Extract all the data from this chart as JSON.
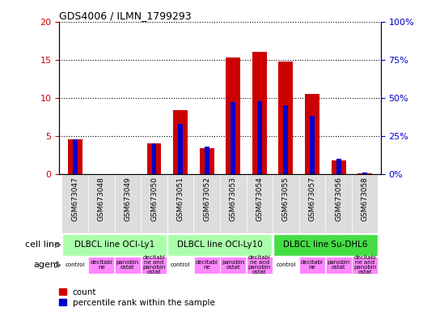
{
  "title": "GDS4006 / ILMN_1799293",
  "samples": [
    "GSM673047",
    "GSM673048",
    "GSM673049",
    "GSM673050",
    "GSM673051",
    "GSM673052",
    "GSM673053",
    "GSM673054",
    "GSM673055",
    "GSM673057",
    "GSM673056",
    "GSM673058"
  ],
  "count_values": [
    4.5,
    0,
    0,
    4.0,
    8.4,
    3.4,
    15.3,
    16.0,
    14.8,
    10.5,
    1.8,
    0.1
  ],
  "percentile_values": [
    23,
    0,
    0,
    20,
    33,
    18,
    47,
    48,
    45,
    38,
    10,
    1
  ],
  "ylim_left": [
    0,
    20
  ],
  "ylim_right": [
    0,
    100
  ],
  "yticks_left": [
    0,
    5,
    10,
    15,
    20
  ],
  "yticks_right": [
    0,
    25,
    50,
    75,
    100
  ],
  "bar_color_count": "#cc0000",
  "bar_color_pct": "#0000cc",
  "cell_line_groups": [
    {
      "label": "DLBCL line OCI-Ly1",
      "start": 0,
      "end": 4,
      "color": "#aaffaa"
    },
    {
      "label": "DLBCL line OCI-Ly10",
      "start": 4,
      "end": 8,
      "color": "#aaffaa"
    },
    {
      "label": "DLBCL line Su-DHL6",
      "start": 8,
      "end": 12,
      "color": "#44dd44"
    }
  ],
  "agent_labels": [
    "control",
    "decitabi\nne",
    "panobin\nostat",
    "decitabi\nne and\npanobin\nostat",
    "control",
    "decitabi\nne",
    "panobin\nostat",
    "decitabi\nne and\npanobin\nostat",
    "control",
    "decitabi\nne",
    "panobin\nostat",
    "decitabi\nne and\npanobin\nostat"
  ],
  "agent_bg_color": "#ff88ff",
  "cell_line_label": "cell line",
  "agent_label": "agent",
  "legend_count": "count",
  "legend_pct": "percentile rank within the sample",
  "red_bar_width": 0.55,
  "blue_bar_width": 0.18
}
